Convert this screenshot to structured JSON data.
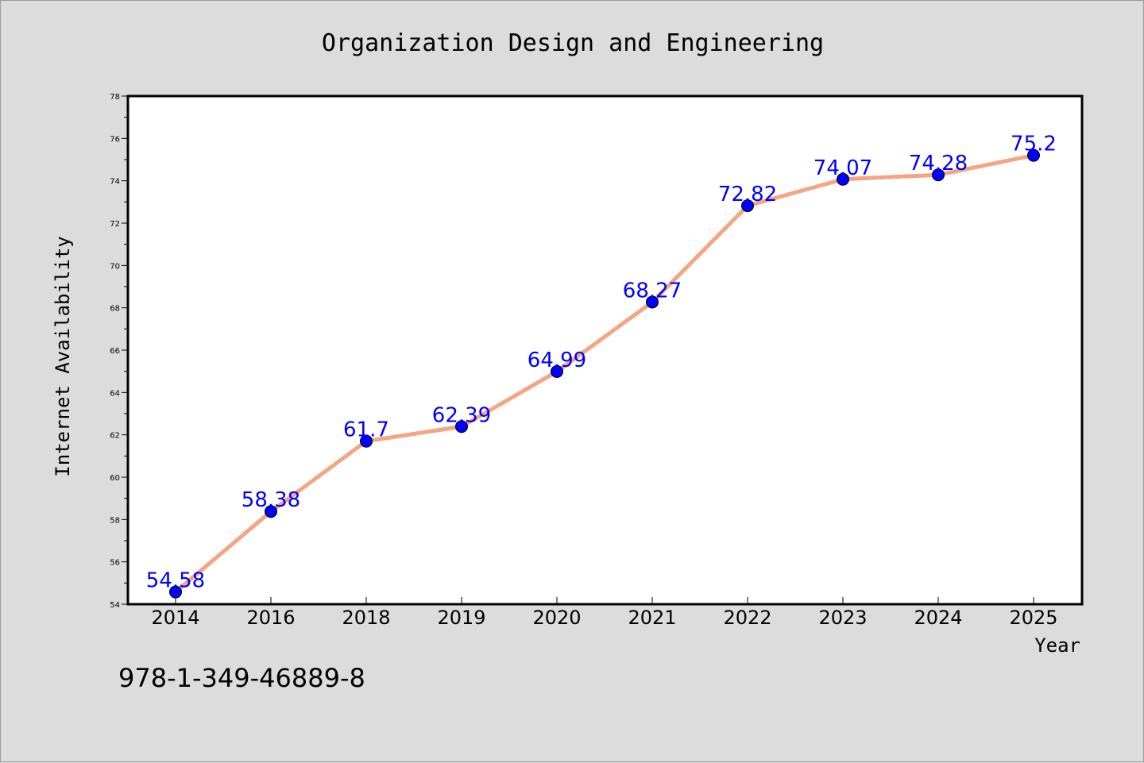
{
  "chart_data": {
    "type": "line",
    "title": "Organization Design and Engineering",
    "xlabel": "Year",
    "ylabel": "Internet Availability",
    "categories": [
      "2014",
      "2016",
      "2018",
      "2019",
      "2020",
      "2021",
      "2022",
      "2023",
      "2024",
      "2025"
    ],
    "series": [
      {
        "values": [
          54.58,
          58.38,
          61.7,
          62.39,
          64.99,
          68.27,
          72.82,
          74.07,
          74.28,
          75.2
        ]
      }
    ],
    "data_labels": [
      "54.58",
      "58.38",
      "61.7",
      "62.39",
      "64.99",
      "68.27",
      "72.82",
      "74.07",
      "74.28",
      "75.2"
    ],
    "ylim": [
      54,
      78
    ],
    "yticks": [
      54,
      56,
      58,
      60,
      62,
      64,
      66,
      68,
      70,
      72,
      74,
      76,
      78
    ],
    "grid": false,
    "legend": "none",
    "colors": {
      "line": "#f4a582",
      "marker": "#0000ff",
      "data_label": "#0000ff",
      "background": "#dcdcdc",
      "plot_area": "#ffffff"
    }
  },
  "footer": {
    "isbn": "978-1-349-46889-8"
  }
}
